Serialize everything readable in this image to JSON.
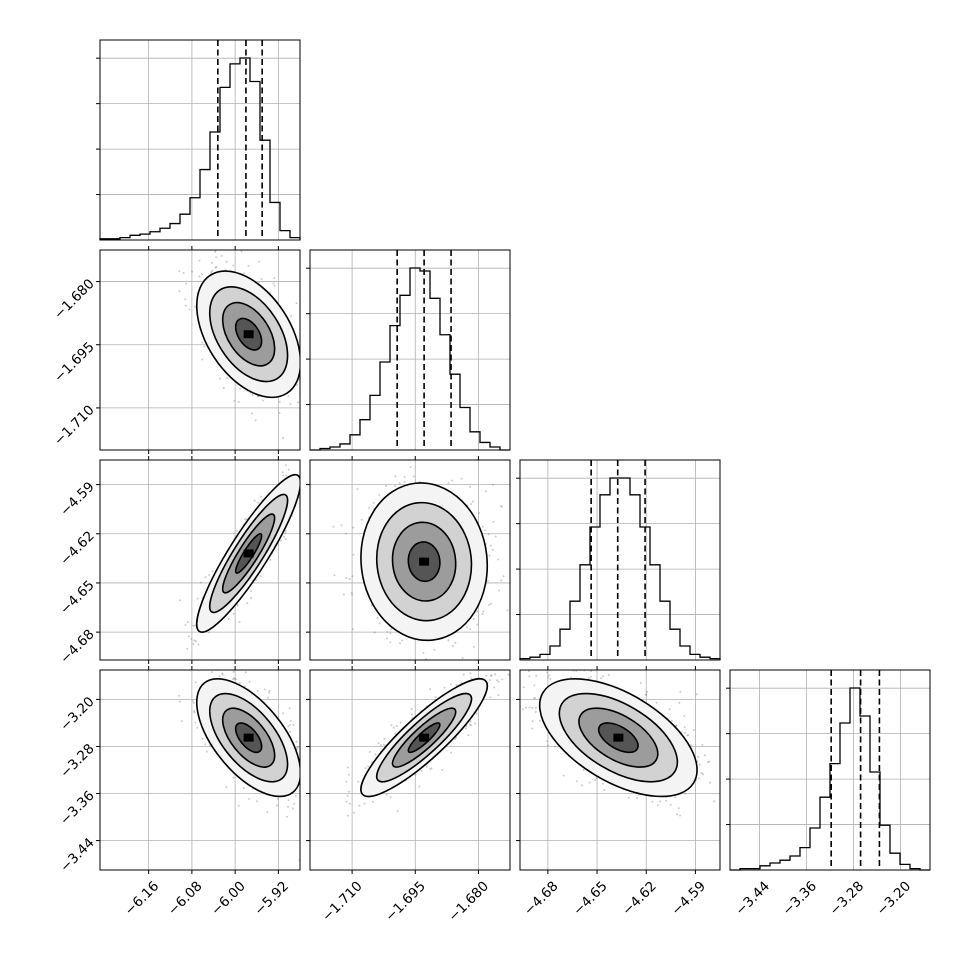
{
  "chart_data": {
    "type": "corner",
    "grid": true,
    "parameters": [
      {
        "range": [
          -6.25,
          -5.88
        ],
        "ticks": [
          -6.16,
          -6.08,
          -6.0,
          -5.92
        ],
        "tick_labels": [
          "−6.16",
          "−6.08",
          "−6.00",
          "−5.92"
        ],
        "quantiles": [
          -6.032,
          -5.98,
          -5.95
        ]
      },
      {
        "range": [
          -1.72,
          -1.6725
        ],
        "ticks": [
          -1.71,
          -1.695,
          -1.68
        ],
        "tick_labels": [
          "−1.710",
          "−1.695",
          "−1.680"
        ],
        "quantiles": [
          -1.6993,
          -1.6929,
          -1.6865
        ]
      },
      {
        "range": [
          -4.697,
          -4.575
        ],
        "ticks": [
          -4.68,
          -4.65,
          -4.62,
          -4.59
        ],
        "tick_labels": [
          "−4.68",
          "−4.65",
          "−4.62",
          "−4.59"
        ],
        "quantiles": [
          -4.6536,
          -4.6374,
          -4.6207
        ]
      },
      {
        "range": [
          -3.49,
          -3.15
        ],
        "ticks": [
          -3.44,
          -3.36,
          -3.28,
          -3.2
        ],
        "tick_labels": [
          "−3.44",
          "−3.36",
          "−3.28",
          "−3.20"
        ],
        "quantiles": [
          -3.318,
          -3.268,
          -3.236
        ]
      }
    ],
    "histograms": [
      {
        "values": [
          1,
          1,
          2,
          4,
          5,
          7,
          10,
          14,
          22,
          36,
          60,
          92,
          130,
          150,
          155,
          135,
          85,
          32,
          8,
          2
        ]
      },
      {
        "values": [
          0,
          1,
          2,
          4,
          10,
          20,
          36,
          58,
          82,
          102,
          120,
          118,
          100,
          76,
          50,
          28,
          12,
          5,
          2,
          0
        ]
      },
      {
        "values": [
          1,
          2,
          4,
          10,
          22,
          42,
          68,
          95,
          118,
          130,
          130,
          118,
          95,
          68,
          42,
          22,
          10,
          4,
          2,
          1
        ]
      },
      {
        "values": [
          0,
          1,
          1,
          3,
          5,
          7,
          10,
          16,
          30,
          52,
          76,
          105,
          130,
          110,
          70,
          32,
          12,
          4,
          1,
          0
        ]
      }
    ],
    "pairs": [
      {
        "row": 1,
        "col": 0,
        "center": [
          -5.975,
          -1.6925
        ],
        "sigma": [
          0.048,
          0.0075
        ],
        "rho": -0.45
      },
      {
        "row": 2,
        "col": 0,
        "center": [
          -5.975,
          -4.632
        ],
        "sigma": [
          0.048,
          0.024
        ],
        "rho": 0.9
      },
      {
        "row": 2,
        "col": 1,
        "center": [
          -1.6929,
          -4.637
        ],
        "sigma": [
          0.0075,
          0.024
        ],
        "rho": -0.05
      },
      {
        "row": 3,
        "col": 0,
        "center": [
          -5.975,
          -3.265
        ],
        "sigma": [
          0.048,
          0.05
        ],
        "rho": -0.6
      },
      {
        "row": 3,
        "col": 1,
        "center": [
          -1.6929,
          -3.265
        ],
        "sigma": [
          0.0075,
          0.05
        ],
        "rho": 0.88
      },
      {
        "row": 3,
        "col": 2,
        "center": [
          -4.637,
          -3.265
        ],
        "sigma": [
          0.024,
          0.05
        ],
        "rho": -0.55
      }
    ],
    "contour_levels_sigma": [
      0.5,
      1.0,
      1.5,
      2.0
    ]
  }
}
